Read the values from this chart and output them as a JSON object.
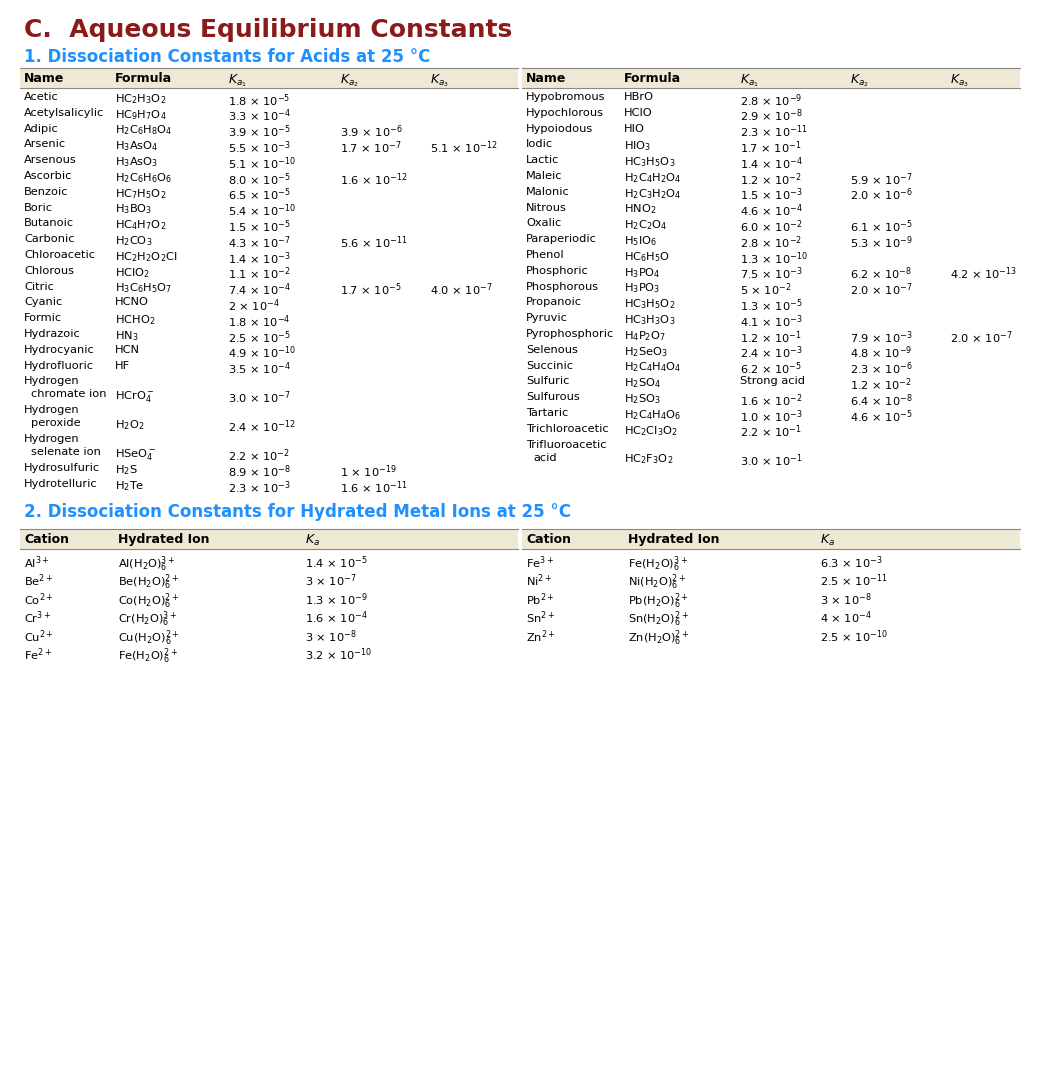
{
  "title": "C.  Aqueous Equilibrium Constants",
  "title_color": "#8B1A1A",
  "section1_title": "1. Dissociation Constants for Acids at 25 °C",
  "section2_title": "2. Dissociation Constants for Hydrated Metal Ions at 25 °C",
  "section_title_color": "#1E90FF",
  "header_bg": "#EDE9D5",
  "background": "#FFFFFF",
  "acids_left": [
    [
      "Acetic",
      "HC$_2$H$_3$O$_2$",
      "1.8 × 10$^{-5}$",
      "",
      ""
    ],
    [
      "Acetylsalicylic",
      "HC$_9$H$_7$O$_4$",
      "3.3 × 10$^{-4}$",
      "",
      ""
    ],
    [
      "Adipic",
      "H$_2$C$_6$H$_8$O$_4$",
      "3.9 × 10$^{-5}$",
      "3.9 × 10$^{-6}$",
      ""
    ],
    [
      "Arsenic",
      "H$_3$AsO$_4$",
      "5.5 × 10$^{-3}$",
      "1.7 × 10$^{-7}$",
      "5.1 × 10$^{-12}$"
    ],
    [
      "Arsenous",
      "H$_3$AsO$_3$",
      "5.1 × 10$^{-10}$",
      "",
      ""
    ],
    [
      "Ascorbic",
      "H$_2$C$_6$H$_6$O$_6$",
      "8.0 × 10$^{-5}$",
      "1.6 × 10$^{-12}$",
      ""
    ],
    [
      "Benzoic",
      "HC$_7$H$_5$O$_2$",
      "6.5 × 10$^{-5}$",
      "",
      ""
    ],
    [
      "Boric",
      "H$_3$BO$_3$",
      "5.4 × 10$^{-10}$",
      "",
      ""
    ],
    [
      "Butanoic",
      "HC$_4$H$_7$O$_2$",
      "1.5 × 10$^{-5}$",
      "",
      ""
    ],
    [
      "Carbonic",
      "H$_2$CO$_3$",
      "4.3 × 10$^{-7}$",
      "5.6 × 10$^{-11}$",
      ""
    ],
    [
      "Chloroacetic",
      "HC$_2$H$_2$O$_2$Cl",
      "1.4 × 10$^{-3}$",
      "",
      ""
    ],
    [
      "Chlorous",
      "HClO$_2$",
      "1.1 × 10$^{-2}$",
      "",
      ""
    ],
    [
      "Citric",
      "H$_3$C$_6$H$_5$O$_7$",
      "7.4 × 10$^{-4}$",
      "1.7 × 10$^{-5}$",
      "4.0 × 10$^{-7}$"
    ],
    [
      "Cyanic",
      "HCNO",
      "2 × 10$^{-4}$",
      "",
      ""
    ],
    [
      "Formic",
      "HCHO$_2$",
      "1.8 × 10$^{-4}$",
      "",
      ""
    ],
    [
      "Hydrazoic",
      "HN$_3$",
      "2.5 × 10$^{-5}$",
      "",
      ""
    ],
    [
      "Hydrocyanic",
      "HCN",
      "4.9 × 10$^{-10}$",
      "",
      ""
    ],
    [
      "Hydrofluoric",
      "HF",
      "3.5 × 10$^{-4}$",
      "",
      ""
    ],
    [
      "Hydrogen|chromate ion",
      "HCrO$_4^-$",
      "3.0 × 10$^{-7}$",
      "",
      ""
    ],
    [
      "Hydrogen|peroxide",
      "H$_2$O$_2$",
      "2.4 × 10$^{-12}$",
      "",
      ""
    ],
    [
      "Hydrogen|selenate ion",
      "HSeO$_4^-$",
      "2.2 × 10$^{-2}$",
      "",
      ""
    ],
    [
      "Hydrosulfuric",
      "H$_2$S",
      "8.9 × 10$^{-8}$",
      "1 × 10$^{-19}$",
      ""
    ],
    [
      "Hydrotelluric",
      "H$_2$Te",
      "2.3 × 10$^{-3}$",
      "1.6 × 10$^{-11}$",
      ""
    ]
  ],
  "acids_right": [
    [
      "Hypobromous",
      "HBrO",
      "2.8 × 10$^{-9}$",
      "",
      ""
    ],
    [
      "Hypochlorous",
      "HClO",
      "2.9 × 10$^{-8}$",
      "",
      ""
    ],
    [
      "Hypoiodous",
      "HIO",
      "2.3 × 10$^{-11}$",
      "",
      ""
    ],
    [
      "Iodic",
      "HIO$_3$",
      "1.7 × 10$^{-1}$",
      "",
      ""
    ],
    [
      "Lactic",
      "HC$_3$H$_5$O$_3$",
      "1.4 × 10$^{-4}$",
      "",
      ""
    ],
    [
      "Maleic",
      "H$_2$C$_4$H$_2$O$_4$",
      "1.2 × 10$^{-2}$",
      "5.9 × 10$^{-7}$",
      ""
    ],
    [
      "Malonic",
      "H$_2$C$_3$H$_2$O$_4$",
      "1.5 × 10$^{-3}$",
      "2.0 × 10$^{-6}$",
      ""
    ],
    [
      "Nitrous",
      "HNO$_2$",
      "4.6 × 10$^{-4}$",
      "",
      ""
    ],
    [
      "Oxalic",
      "H$_2$C$_2$O$_4$",
      "6.0 × 10$^{-2}$",
      "6.1 × 10$^{-5}$",
      ""
    ],
    [
      "Paraperiodic",
      "H$_5$IO$_6$",
      "2.8 × 10$^{-2}$",
      "5.3 × 10$^{-9}$",
      ""
    ],
    [
      "Phenol",
      "HC$_6$H$_5$O",
      "1.3 × 10$^{-10}$",
      "",
      ""
    ],
    [
      "Phosphoric",
      "H$_3$PO$_4$",
      "7.5 × 10$^{-3}$",
      "6.2 × 10$^{-8}$",
      "4.2 × 10$^{-13}$"
    ],
    [
      "Phosphorous",
      "H$_3$PO$_3$",
      "5 × 10$^{-2}$",
      "2.0 × 10$^{-7}$",
      ""
    ],
    [
      "Propanoic",
      "HC$_3$H$_5$O$_2$",
      "1.3 × 10$^{-5}$",
      "",
      ""
    ],
    [
      "Pyruvic",
      "HC$_3$H$_3$O$_3$",
      "4.1 × 10$^{-3}$",
      "",
      ""
    ],
    [
      "Pyrophosphoric",
      "H$_4$P$_2$O$_7$",
      "1.2 × 10$^{-1}$",
      "7.9 × 10$^{-3}$",
      "2.0 × 10$^{-7}$"
    ],
    [
      "Selenous",
      "H$_2$SeO$_3$",
      "2.4 × 10$^{-3}$",
      "4.8 × 10$^{-9}$",
      ""
    ],
    [
      "Succinic",
      "H$_2$C$_4$H$_4$O$_4$",
      "6.2 × 10$^{-5}$",
      "2.3 × 10$^{-6}$",
      ""
    ],
    [
      "Sulfuric",
      "H$_2$SO$_4$",
      "Strong acid",
      "1.2 × 10$^{-2}$",
      ""
    ],
    [
      "Sulfurous",
      "H$_2$SO$_3$",
      "1.6 × 10$^{-2}$",
      "6.4 × 10$^{-8}$",
      ""
    ],
    [
      "Tartaric",
      "H$_2$C$_4$H$_4$O$_6$",
      "1.0 × 10$^{-3}$",
      "4.6 × 10$^{-5}$",
      ""
    ],
    [
      "Trichloroacetic",
      "HC$_2$Cl$_3$O$_2$",
      "2.2 × 10$^{-1}$",
      "",
      ""
    ],
    [
      "Trifluoroacetic|acid",
      "HC$_2$F$_3$O$_2$",
      "3.0 × 10$^{-1}$",
      "",
      ""
    ]
  ],
  "metals_left": [
    [
      "Al$^{3+}$",
      "Al(H$_2$O)$_6^{3+}$",
      "1.4 × 10$^{-5}$"
    ],
    [
      "Be$^{2+}$",
      "Be(H$_2$O)$_6^{2+}$",
      "3 × 10$^{-7}$"
    ],
    [
      "Co$^{2+}$",
      "Co(H$_2$O)$_6^{2+}$",
      "1.3 × 10$^{-9}$"
    ],
    [
      "Cr$^{3+}$",
      "Cr(H$_2$O)$_6^{3+}$",
      "1.6 × 10$^{-4}$"
    ],
    [
      "Cu$^{2+}$",
      "Cu(H$_2$O)$_6^{2+}$",
      "3 × 10$^{-8}$"
    ],
    [
      "Fe$^{2+}$",
      "Fe(H$_2$O)$_6^{2+}$",
      "3.2 × 10$^{-10}$"
    ]
  ],
  "metals_right": [
    [
      "Fe$^{3+}$",
      "Fe(H$_2$O)$_6^{3+}$",
      "6.3 × 10$^{-3}$"
    ],
    [
      "Ni$^{2+}$",
      "Ni(H$_2$O)$_6^{2+}$",
      "2.5 × 10$^{-11}$"
    ],
    [
      "Pb$^{2+}$",
      "Pb(H$_2$O)$_6^{2+}$",
      "3 × 10$^{-8}$"
    ],
    [
      "Sn$^{2+}$",
      "Sn(H$_2$O)$_6^{2+}$",
      "4 × 10$^{-4}$"
    ],
    [
      "Zn$^{2+}$",
      "Zn(H$_2$O)$_6^{2+}$",
      "2.5 × 10$^{-10}$"
    ]
  ]
}
